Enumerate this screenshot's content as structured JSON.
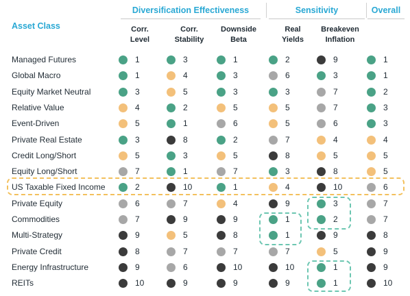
{
  "header": {
    "group_div": "Diversification Effectiveness",
    "group_sens": "Sensitivity",
    "group_overall": "Overall",
    "asset_class": "Asset Class",
    "columns": [
      {
        "line1": "Corr.",
        "line2": "Level"
      },
      {
        "line1": "Corr.",
        "line2": "Stability"
      },
      {
        "line1": "Downside",
        "line2": "Beta"
      },
      {
        "line1": "Real",
        "line2": "Yields"
      },
      {
        "line1": "Breakeven",
        "line2": "Inflation"
      }
    ]
  },
  "colors": {
    "green": "#4aa286",
    "orange": "#f3c07a",
    "gray": "#a7a7a7",
    "black": "#3b3b3b",
    "header_blue": "#29a8d4",
    "highlight_yellow": "#f3c05c",
    "highlight_teal": "#6cc6b1"
  },
  "rows": [
    {
      "name": "Managed Futures",
      "cells": [
        {
          "v": "1",
          "c": "green"
        },
        {
          "v": "3",
          "c": "green"
        },
        {
          "v": "1",
          "c": "green"
        },
        {
          "v": "2",
          "c": "green"
        },
        {
          "v": "9",
          "c": "black"
        },
        {
          "v": "1",
          "c": "green"
        }
      ]
    },
    {
      "name": "Global Macro",
      "cells": [
        {
          "v": "1",
          "c": "green"
        },
        {
          "v": "4",
          "c": "orange"
        },
        {
          "v": "3",
          "c": "green"
        },
        {
          "v": "6",
          "c": "gray"
        },
        {
          "v": "3",
          "c": "green"
        },
        {
          "v": "1",
          "c": "green"
        }
      ]
    },
    {
      "name": "Equity Market Neutral",
      "cells": [
        {
          "v": "3",
          "c": "green"
        },
        {
          "v": "5",
          "c": "orange"
        },
        {
          "v": "3",
          "c": "green"
        },
        {
          "v": "3",
          "c": "green"
        },
        {
          "v": "7",
          "c": "gray"
        },
        {
          "v": "2",
          "c": "green"
        }
      ]
    },
    {
      "name": "Relative Value",
      "cells": [
        {
          "v": "4",
          "c": "orange"
        },
        {
          "v": "2",
          "c": "green"
        },
        {
          "v": "5",
          "c": "orange"
        },
        {
          "v": "5",
          "c": "orange"
        },
        {
          "v": "7",
          "c": "gray"
        },
        {
          "v": "3",
          "c": "green"
        }
      ]
    },
    {
      "name": "Event-Driven",
      "cells": [
        {
          "v": "5",
          "c": "orange"
        },
        {
          "v": "1",
          "c": "green"
        },
        {
          "v": "6",
          "c": "gray"
        },
        {
          "v": "5",
          "c": "orange"
        },
        {
          "v": "6",
          "c": "gray"
        },
        {
          "v": "3",
          "c": "green"
        }
      ]
    },
    {
      "name": "Private Real Estate",
      "cells": [
        {
          "v": "3",
          "c": "green"
        },
        {
          "v": "8",
          "c": "black"
        },
        {
          "v": "2",
          "c": "green"
        },
        {
          "v": "7",
          "c": "gray"
        },
        {
          "v": "4",
          "c": "orange"
        },
        {
          "v": "4",
          "c": "orange"
        }
      ]
    },
    {
      "name": "Credit Long/Short",
      "cells": [
        {
          "v": "5",
          "c": "orange"
        },
        {
          "v": "3",
          "c": "green"
        },
        {
          "v": "5",
          "c": "orange"
        },
        {
          "v": "8",
          "c": "black"
        },
        {
          "v": "5",
          "c": "orange"
        },
        {
          "v": "5",
          "c": "orange"
        }
      ]
    },
    {
      "name": "Equity Long/Short",
      "cells": [
        {
          "v": "7",
          "c": "gray"
        },
        {
          "v": "1",
          "c": "green"
        },
        {
          "v": "7",
          "c": "gray"
        },
        {
          "v": "3",
          "c": "green"
        },
        {
          "v": "8",
          "c": "black"
        },
        {
          "v": "5",
          "c": "orange"
        }
      ]
    },
    {
      "name": "US Taxable Fixed Income",
      "cells": [
        {
          "v": "2",
          "c": "green"
        },
        {
          "v": "10",
          "c": "black"
        },
        {
          "v": "1",
          "c": "green"
        },
        {
          "v": "4",
          "c": "orange"
        },
        {
          "v": "10",
          "c": "black"
        },
        {
          "v": "6",
          "c": "gray"
        }
      ]
    },
    {
      "name": "Private Equity",
      "cells": [
        {
          "v": "6",
          "c": "gray"
        },
        {
          "v": "7",
          "c": "gray"
        },
        {
          "v": "4",
          "c": "orange"
        },
        {
          "v": "9",
          "c": "black"
        },
        {
          "v": "3",
          "c": "green"
        },
        {
          "v": "7",
          "c": "gray"
        }
      ]
    },
    {
      "name": "Commodities",
      "cells": [
        {
          "v": "7",
          "c": "gray"
        },
        {
          "v": "9",
          "c": "black"
        },
        {
          "v": "9",
          "c": "black"
        },
        {
          "v": "1",
          "c": "green"
        },
        {
          "v": "2",
          "c": "green"
        },
        {
          "v": "7",
          "c": "gray"
        }
      ]
    },
    {
      "name": "Multi-Strategy",
      "cells": [
        {
          "v": "9",
          "c": "black"
        },
        {
          "v": "5",
          "c": "orange"
        },
        {
          "v": "8",
          "c": "black"
        },
        {
          "v": "1",
          "c": "green"
        },
        {
          "v": "9",
          "c": "black"
        },
        {
          "v": "8",
          "c": "black"
        }
      ]
    },
    {
      "name": "Private Credit",
      "cells": [
        {
          "v": "8",
          "c": "black"
        },
        {
          "v": "7",
          "c": "gray"
        },
        {
          "v": "7",
          "c": "gray"
        },
        {
          "v": "7",
          "c": "gray"
        },
        {
          "v": "5",
          "c": "orange"
        },
        {
          "v": "9",
          "c": "black"
        }
      ]
    },
    {
      "name": "Energy Infrastructure",
      "cells": [
        {
          "v": "9",
          "c": "black"
        },
        {
          "v": "6",
          "c": "gray"
        },
        {
          "v": "10",
          "c": "black"
        },
        {
          "v": "10",
          "c": "black"
        },
        {
          "v": "1",
          "c": "green"
        },
        {
          "v": "9",
          "c": "black"
        }
      ]
    },
    {
      "name": "REITs",
      "cells": [
        {
          "v": "10",
          "c": "black"
        },
        {
          "v": "9",
          "c": "black"
        },
        {
          "v": "9",
          "c": "black"
        },
        {
          "v": "9",
          "c": "black"
        },
        {
          "v": "1",
          "c": "green"
        },
        {
          "v": "10",
          "c": "black"
        }
      ]
    }
  ]
}
